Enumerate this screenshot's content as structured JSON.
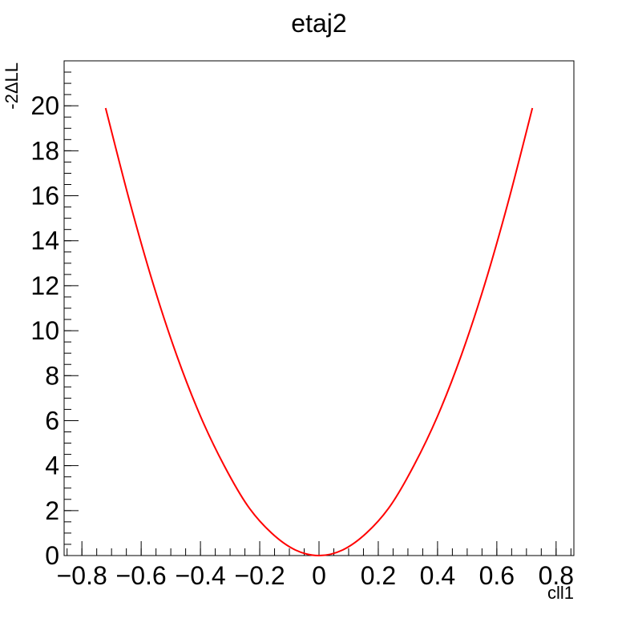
{
  "chart_data": {
    "type": "line",
    "title": "etaj2",
    "xlabel": "cll1",
    "ylabel": "-2ΔLL",
    "xlim": [
      -0.86,
      0.86
    ],
    "ylim": [
      0,
      22
    ],
    "xticks": [
      -0.8,
      -0.6,
      -0.4,
      -0.2,
      0,
      0.2,
      0.4,
      0.6,
      0.8
    ],
    "xtick_labels": [
      "−0.8",
      "−0.6",
      "−0.4",
      "−0.2",
      "0",
      "0.2",
      "0.4",
      "0.6",
      "0.8"
    ],
    "yticks": [
      0,
      2,
      4,
      6,
      8,
      10,
      12,
      14,
      16,
      18,
      20
    ],
    "ytick_labels": [
      "0",
      "2",
      "4",
      "6",
      "8",
      "10",
      "12",
      "14",
      "16",
      "18",
      "20"
    ],
    "grid": false,
    "series": [
      {
        "color": "#ff0000",
        "x": [
          -0.72,
          -0.64,
          -0.56,
          -0.48,
          -0.4,
          -0.32,
          -0.24,
          -0.16,
          -0.08,
          0.0,
          0.08,
          0.16,
          0.24,
          0.32,
          0.4,
          0.48,
          0.56,
          0.64,
          0.72
        ],
        "y": [
          19.9,
          15.8,
          12.1,
          8.9,
          6.2,
          4.0,
          2.2,
          1.0,
          0.25,
          0.0,
          0.25,
          1.0,
          2.2,
          4.0,
          6.2,
          8.9,
          12.1,
          15.8,
          19.9
        ]
      }
    ]
  }
}
